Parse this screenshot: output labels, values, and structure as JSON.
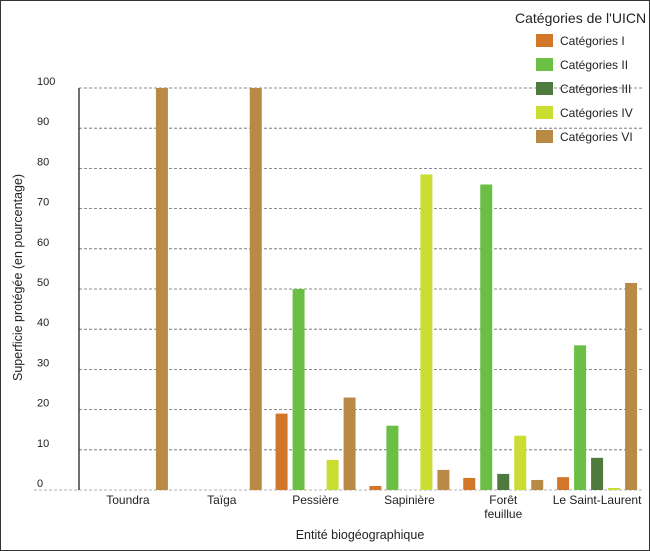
{
  "chart_data": {
    "type": "bar",
    "categories": [
      [
        "Toundra"
      ],
      [
        "Taïga"
      ],
      [
        "Pessière"
      ],
      [
        "Sapinière"
      ],
      [
        "Forêt",
        "feuillue"
      ],
      [
        "Le Saint-Laurent"
      ]
    ],
    "series": [
      {
        "name": "Catégories I",
        "color": "#d2762a",
        "values": [
          0,
          0,
          19,
          1,
          3,
          3.2
        ]
      },
      {
        "name": "Catégories II",
        "color": "#6cbf45",
        "values": [
          0,
          0,
          50,
          16,
          76,
          36
        ]
      },
      {
        "name": "Catégories III",
        "color": "#4f7a3e",
        "values": [
          0,
          0,
          0,
          0,
          4,
          8
        ]
      },
      {
        "name": "Catégories IV",
        "color": "#cadd32",
        "values": [
          0,
          0,
          7.5,
          78.5,
          13.5,
          0.5
        ]
      },
      {
        "name": "Catégories VI",
        "color": "#b88a45",
        "values": [
          100,
          100,
          23,
          5,
          2.5,
          51.5
        ]
      }
    ],
    "yticks": [
      0,
      10,
      20,
      30,
      40,
      50,
      60,
      70,
      80,
      90,
      100
    ],
    "ylim": [
      0,
      100
    ],
    "xlabel": "Entité biogéographique",
    "ylabel": "Superficie protégée (en pourcentage)",
    "legend_title": "Catégories de l'UICN",
    "legend_position": "top-right",
    "grid": "horizontal dashed"
  }
}
